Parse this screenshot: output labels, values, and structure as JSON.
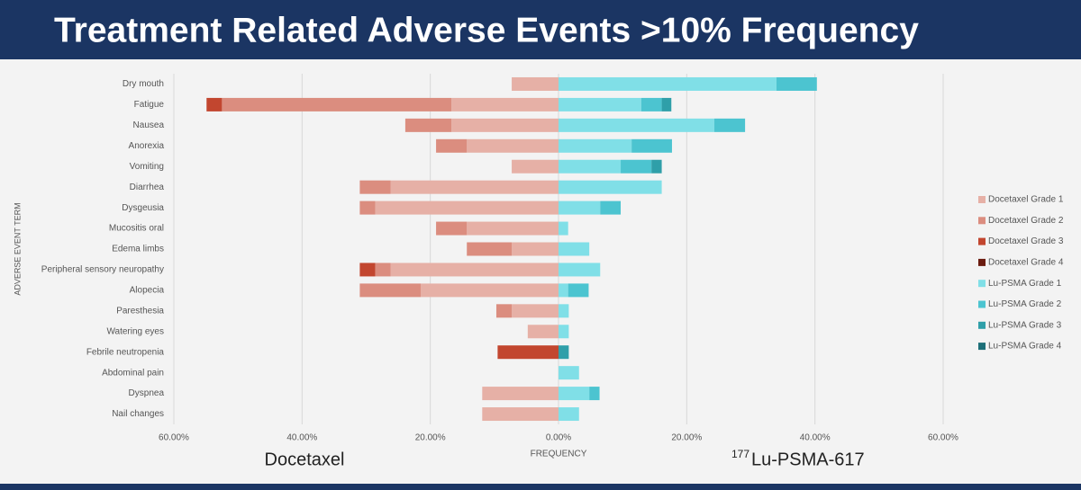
{
  "chart_data": {
    "type": "butterfly_bar",
    "title": "Treatment Related Adverse Events >10% Frequency",
    "x_label": "FREQUENCY",
    "y_label": "ADVERSE EVENT TERM",
    "left_label": "Docetaxel",
    "right_label_superscript": "177",
    "right_label": "Lu-PSMA-617",
    "categories": [
      "Dry mouth",
      "Fatigue",
      "Nausea",
      "Anorexia",
      "Vomiting",
      "Diarrhea",
      "Dysgeusia",
      "Mucositis oral",
      "Edema limbs",
      "Peripheral sensory neuropathy",
      "Alopecia",
      "Paresthesia",
      "Watering eyes",
      "Febrile neutropenia",
      "Abdominal pain",
      "Dyspnea",
      "Nail changes"
    ],
    "xlim": [
      -60,
      60
    ],
    "xticks": [
      {
        "value": -60,
        "label": "60.00%"
      },
      {
        "value": -40,
        "label": "40.00%"
      },
      {
        "value": -20,
        "label": "20.00%"
      },
      {
        "value": 0,
        "label": "0.00%"
      },
      {
        "value": 20,
        "label": "20.00%"
      },
      {
        "value": 40,
        "label": "40.00%"
      },
      {
        "value": 60,
        "label": "60.00%"
      }
    ],
    "grid": true,
    "legend_position": "right",
    "series": [
      {
        "name": "Docetaxel Grade 1",
        "color": "#e6b0a6",
        "values": [
          -7.3,
          -16.7,
          -16.7,
          -14.3,
          -7.3,
          -26.2,
          -28.6,
          -14.3,
          -7.3,
          -26.2,
          -21.5,
          -7.3,
          -4.8,
          null,
          null,
          -11.9,
          -11.9
        ]
      },
      {
        "name": "Docetaxel Grade 2",
        "color": "#db8d7f",
        "values": [
          null,
          -35.8,
          -7.2,
          -4.8,
          null,
          -4.8,
          -2.4,
          -4.8,
          -7.0,
          -2.4,
          -9.5,
          -2.4,
          null,
          null,
          null,
          null,
          null
        ]
      },
      {
        "name": "Docetaxel Grade 3",
        "color": "#c2462f",
        "values": [
          null,
          -2.4,
          null,
          null,
          null,
          null,
          null,
          null,
          null,
          -2.4,
          null,
          null,
          null,
          -9.5,
          null,
          null,
          null
        ]
      },
      {
        "name": "Docetaxel Grade 4",
        "color": "#6b1c10",
        "values": [
          null,
          null,
          null,
          null,
          null,
          null,
          null,
          null,
          null,
          null,
          null,
          null,
          null,
          null,
          null,
          null,
          null
        ]
      },
      {
        "name": "Lu-PSMA Grade 1",
        "color": "#80dfe7",
        "values": [
          34,
          12.9,
          24.3,
          11.4,
          9.7,
          16.1,
          6.5,
          1.5,
          4.8,
          6.5,
          1.5,
          1.6,
          1.6,
          null,
          3.2,
          4.8,
          3.2
        ]
      },
      {
        "name": "Lu-PSMA Grade 2",
        "color": "#4cc4d0",
        "values": [
          6.3,
          3.2,
          4.8,
          6.3,
          4.8,
          null,
          3.2,
          null,
          null,
          null,
          3.2,
          null,
          null,
          null,
          null,
          1.6,
          null
        ]
      },
      {
        "name": "Lu-PSMA Grade 3",
        "color": "#2f9fa9",
        "values": [
          null,
          1.5,
          null,
          null,
          1.6,
          null,
          null,
          null,
          null,
          null,
          null,
          null,
          null,
          1.6,
          null,
          null,
          null
        ]
      },
      {
        "name": "Lu-PSMA Grade 4",
        "color": "#1d6f78",
        "values": [
          null,
          null,
          null,
          null,
          null,
          null,
          null,
          null,
          null,
          null,
          null,
          null,
          null,
          null,
          null,
          null,
          null
        ]
      }
    ]
  }
}
